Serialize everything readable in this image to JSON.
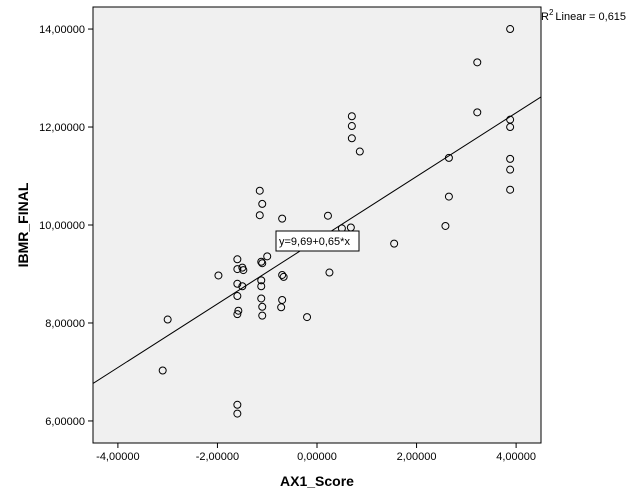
{
  "chart_data": {
    "type": "scatter",
    "title": "",
    "xlabel": "AX1_Score",
    "ylabel": "IBMR_FINAL",
    "xlim": [
      -4.5,
      4.5
    ],
    "ylim": [
      5.55,
      14.45
    ],
    "x_ticks": [
      -4,
      -2,
      0,
      2,
      4
    ],
    "y_ticks": [
      6,
      8,
      10,
      12,
      14
    ],
    "x_tick_labels": [
      "-4,00000",
      "-2,00000",
      "0,00000",
      "2,00000",
      "4,00000"
    ],
    "y_tick_labels": [
      "6,00000",
      "8,00000",
      "10,00000",
      "12,00000",
      "14,00000"
    ],
    "grid": false,
    "background": "#f0f0f0",
    "marker": "open-circle",
    "fit_line": {
      "intercept": 9.69,
      "slope": 0.65
    },
    "fit_equation": "y=9,69+0,65*x",
    "r2_label": "Linear = 0,615",
    "r2_prefix": "R",
    "r2_superscript": "2",
    "points": [
      {
        "x": -3.1,
        "y": 7.03
      },
      {
        "x": -3.0,
        "y": 8.07
      },
      {
        "x": -1.98,
        "y": 8.97
      },
      {
        "x": -1.6,
        "y": 9.3
      },
      {
        "x": -1.6,
        "y": 9.1
      },
      {
        "x": -1.6,
        "y": 8.8
      },
      {
        "x": -1.6,
        "y": 8.55
      },
      {
        "x": -1.58,
        "y": 8.25
      },
      {
        "x": -1.6,
        "y": 8.18
      },
      {
        "x": -1.6,
        "y": 6.33
      },
      {
        "x": -1.6,
        "y": 6.15
      },
      {
        "x": -1.5,
        "y": 9.13
      },
      {
        "x": -1.48,
        "y": 9.08
      },
      {
        "x": -1.5,
        "y": 8.75
      },
      {
        "x": -1.15,
        "y": 10.7
      },
      {
        "x": -1.1,
        "y": 10.43
      },
      {
        "x": -1.15,
        "y": 10.2
      },
      {
        "x": -1.12,
        "y": 9.25
      },
      {
        "x": -1.1,
        "y": 9.22
      },
      {
        "x": -1.12,
        "y": 8.87
      },
      {
        "x": -1.12,
        "y": 8.75
      },
      {
        "x": -1.12,
        "y": 8.5
      },
      {
        "x": -1.1,
        "y": 8.33
      },
      {
        "x": -1.1,
        "y": 8.15
      },
      {
        "x": -1.0,
        "y": 9.36
      },
      {
        "x": -0.7,
        "y": 10.13
      },
      {
        "x": -0.7,
        "y": 8.98
      },
      {
        "x": -0.67,
        "y": 8.94
      },
      {
        "x": -0.7,
        "y": 8.47
      },
      {
        "x": -0.72,
        "y": 8.32
      },
      {
        "x": -0.2,
        "y": 8.12
      },
      {
        "x": 0.22,
        "y": 10.19
      },
      {
        "x": 0.25,
        "y": 9.03
      },
      {
        "x": 0.5,
        "y": 9.93
      },
      {
        "x": 0.68,
        "y": 9.95
      },
      {
        "x": 0.7,
        "y": 12.22
      },
      {
        "x": 0.7,
        "y": 12.02
      },
      {
        "x": 0.7,
        "y": 11.77
      },
      {
        "x": 0.86,
        "y": 11.5
      },
      {
        "x": 1.55,
        "y": 9.62
      },
      {
        "x": 2.58,
        "y": 9.98
      },
      {
        "x": 2.65,
        "y": 11.37
      },
      {
        "x": 2.65,
        "y": 10.58
      },
      {
        "x": 3.22,
        "y": 13.32
      },
      {
        "x": 3.22,
        "y": 12.3
      },
      {
        "x": 3.88,
        "y": 14.0
      },
      {
        "x": 3.88,
        "y": 12.15
      },
      {
        "x": 3.88,
        "y": 12.0
      },
      {
        "x": 3.88,
        "y": 11.35
      },
      {
        "x": 3.88,
        "y": 11.13
      },
      {
        "x": 3.88,
        "y": 10.72
      }
    ]
  }
}
